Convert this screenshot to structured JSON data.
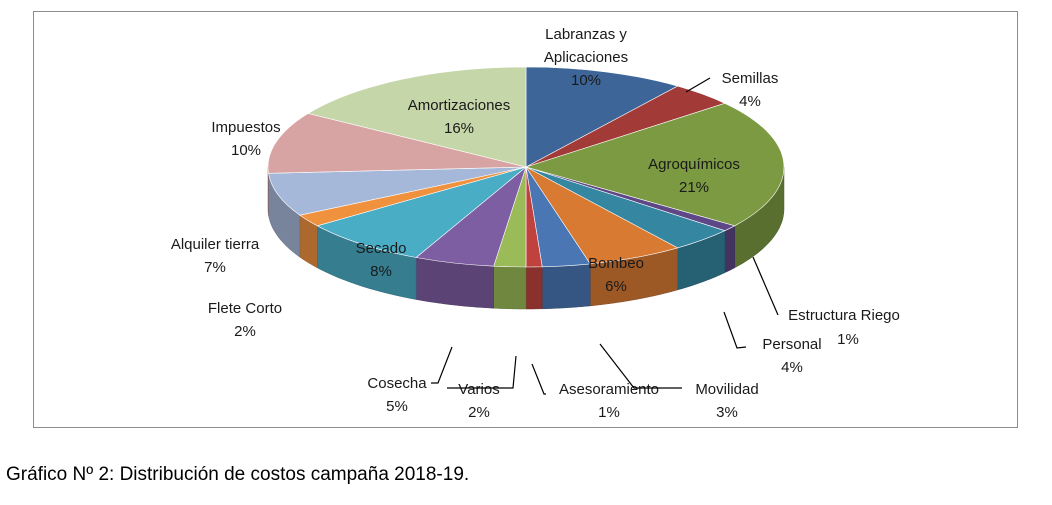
{
  "caption": "Gráfico Nº 2: Distribución de costos campaña 2018-19.",
  "chart_data": {
    "type": "pie",
    "title": "",
    "legend": "none",
    "start_angle_deg": 0,
    "direction": "clockwise",
    "slices": [
      {
        "name": "Labranzas y Aplicaciones",
        "value": 10,
        "label": "10%",
        "color": "#3d6598"
      },
      {
        "name": "Semillas",
        "value": 4,
        "label": "4%",
        "color": "#a23a38"
      },
      {
        "name": "Agroquímicos",
        "value": 21,
        "label": "21%",
        "color": "#7c9a42"
      },
      {
        "name": "Estructura Riego",
        "value": 1,
        "label": "1%",
        "color": "#5d4787"
      },
      {
        "name": "Personal",
        "value": 4,
        "label": "4%",
        "color": "#3586a0"
      },
      {
        "name": "Bombeo",
        "value": 6,
        "label": "6%",
        "color": "#d97a33"
      },
      {
        "name": "Movilidad",
        "value": 3,
        "label": "3%",
        "color": "#4a76b4"
      },
      {
        "name": "Asesoramiento",
        "value": 1,
        "label": "1%",
        "color": "#c0423f"
      },
      {
        "name": "Varios",
        "value": 2,
        "label": "2%",
        "color": "#9bbb59"
      },
      {
        "name": "Cosecha",
        "value": 5,
        "label": "5%",
        "color": "#7e5ea3"
      },
      {
        "name": "Secado",
        "value": 8,
        "label": "8%",
        "color": "#4aadc6"
      },
      {
        "name": "Flete Corto",
        "value": 2,
        "label": "2%",
        "color": "#f0913e"
      },
      {
        "name": "Alquiler tierra",
        "value": 7,
        "label": "7%",
        "color": "#a6b8d9"
      },
      {
        "name": "Impuestos",
        "value": 10,
        "label": "10%",
        "color": "#d8a4a3"
      },
      {
        "name": "Amortizaciones",
        "value": 16,
        "label": "16%",
        "color": "#c5d6a8"
      }
    ]
  }
}
